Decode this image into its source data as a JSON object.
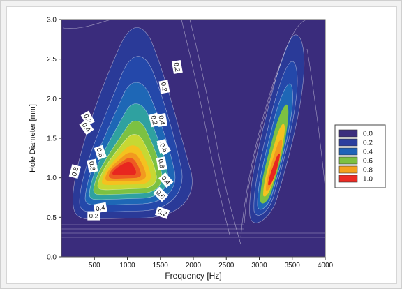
{
  "chart_data": {
    "type": "heatmap",
    "title": "",
    "xlabel": "Frequency [Hz]",
    "ylabel": "Hole Diameter [mm]",
    "xlim": [
      0,
      4000
    ],
    "ylim": [
      0,
      3.0
    ],
    "xticks": [
      500,
      1000,
      1500,
      2000,
      2500,
      3000,
      3500,
      4000
    ],
    "xtick_labels": [
      "500",
      "1000",
      "1500",
      "2000",
      "2500",
      "3000",
      "3500",
      "4000"
    ],
    "yticks": [
      0.0,
      0.5,
      1.0,
      1.5,
      2.0,
      2.5,
      3.0
    ],
    "ytick_labels": [
      "0.0",
      "0.5",
      "1.0",
      "1.5",
      "2.0",
      "2.5",
      "3.0"
    ],
    "legend": {
      "position": "right",
      "levels": [
        {
          "label": "0.0",
          "color": "#3b2d7d"
        },
        {
          "label": "0.2",
          "color": "#2c3f9e"
        },
        {
          "label": "0.4",
          "color": "#1f63b8"
        },
        {
          "label": "0.6",
          "color": "#7cc142"
        },
        {
          "label": "0.8",
          "color": "#f4a11d"
        },
        {
          "label": "1.0",
          "color": "#ec2b23"
        }
      ]
    },
    "peaks": [
      {
        "x": 730,
        "y": 1.13,
        "value": 1.0
      },
      {
        "x": 3180,
        "y": 1.45,
        "value": 1.0
      }
    ],
    "contour_labels": [
      {
        "text": "0.2",
        "x": 0,
        "y": 1.75,
        "rot": 60
      },
      {
        "text": "0.4",
        "x": 0,
        "y": 1.64,
        "rot": 55
      },
      {
        "text": "0.8",
        "x": 0,
        "y": 1.08,
        "rot": -75
      },
      {
        "text": "0.8",
        "x": 0,
        "y": 1.15,
        "rot": 80
      },
      {
        "text": "0.6",
        "x": 0,
        "y": 1.32,
        "rot": 70
      },
      {
        "text": "0.4",
        "x": 0,
        "y": 0.62,
        "rot": -10
      },
      {
        "text": "0.2",
        "x": 0,
        "y": 0.52,
        "rot": 0
      },
      {
        "text": "0.2",
        "x": 0,
        "y": 1.73,
        "rot": 75
      },
      {
        "text": "0.2",
        "x": 0,
        "y": 2.15,
        "rot": 80
      },
      {
        "text": "0.4",
        "x": 0,
        "y": 1.73,
        "rot": 80
      },
      {
        "text": "0.8",
        "x": 0,
        "y": 1.4,
        "rot": 75
      },
      {
        "text": "0.6",
        "x": 0,
        "y": 1.38,
        "rot": 60
      },
      {
        "text": "0.8",
        "x": 0,
        "y": 1.18,
        "rot": 80
      },
      {
        "text": "0.4",
        "x": 0,
        "y": 0.97,
        "rot": 50
      },
      {
        "text": "0.6",
        "x": 0,
        "y": 0.79,
        "rot": 45
      },
      {
        "text": "0.2",
        "x": 0,
        "y": 0.56,
        "rot": 20
      },
      {
        "text": "0.2",
        "x": 0,
        "y": 2.4,
        "rot": 80
      }
    ],
    "contour_label_x": [
      1400,
      1380,
      1205,
      1470,
      1590,
      1590,
      1490,
      2410,
      2560,
      2525,
      2535,
      2555,
      2520,
      2585,
      2505,
      2530,
      2755
    ]
  }
}
